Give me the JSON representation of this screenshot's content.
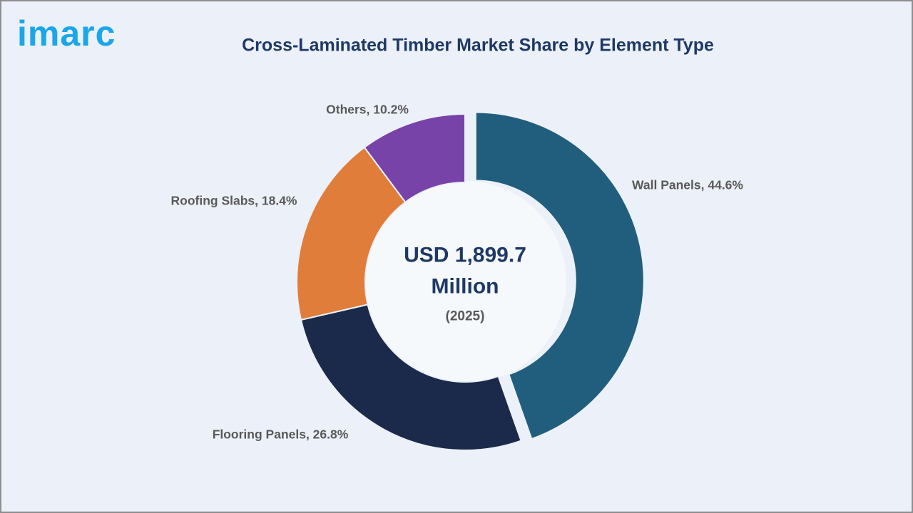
{
  "page": {
    "logo_text": "imarc",
    "title": "Cross-Laminated Timber Market Share by Element Type"
  },
  "center": {
    "value_line1": "USD 1,899.7",
    "value_line2": "Million",
    "year": "(2025)"
  },
  "chart_data": {
    "type": "pie",
    "subtype": "donut",
    "title": "Cross-Laminated Timber Market Share by Element Type",
    "unit": "%",
    "categories": [
      "Wall Panels",
      "Flooring Panels",
      "Roofing Slabs",
      "Others"
    ],
    "values": [
      44.6,
      26.8,
      18.4,
      10.2
    ],
    "labels": [
      "Wall Panels, 44.6%",
      "Flooring Panels, 26.8%",
      "Roofing Slabs, 18.4%",
      "Others, 10.2%"
    ],
    "colors": [
      "#215E7E",
      "#1B2A4A",
      "#E07D3A",
      "#7843A8"
    ],
    "exploded": [
      true,
      false,
      false,
      false
    ],
    "start_angle_deg": -90,
    "direction": "clockwise",
    "center_label": "USD 1,899.7 Million",
    "center_sublabel": "(2025)",
    "legend_position": "none",
    "background_color": "#ECF1F9"
  }
}
